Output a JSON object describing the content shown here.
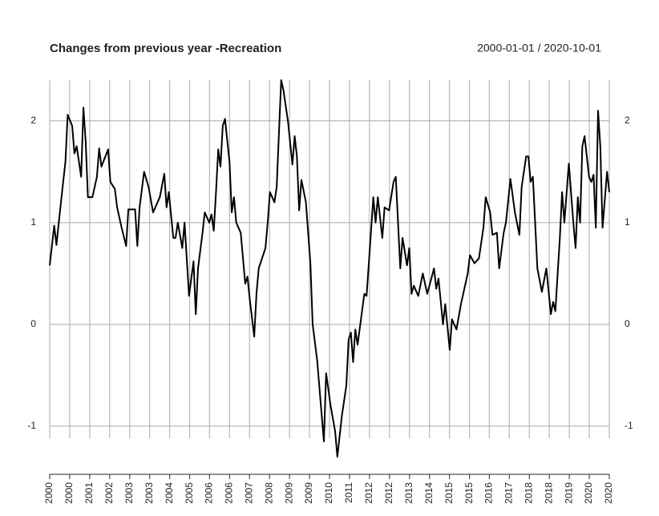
{
  "chart_data": {
    "type": "line",
    "title": "Changes from previous year -Recreation",
    "subtitle": "2000-01-01 / 2020-10-01",
    "x": [
      0,
      2,
      3,
      5,
      7,
      8,
      10,
      11,
      12,
      14,
      15,
      16,
      17,
      19,
      21,
      22,
      23,
      26,
      27,
      29,
      30,
      32,
      34,
      35,
      38,
      39,
      40,
      42,
      44,
      46,
      49,
      51,
      52,
      53,
      55,
      56,
      57,
      59,
      60,
      62,
      64,
      65,
      66,
      68,
      69,
      71,
      72,
      73,
      74,
      75,
      76,
      77,
      78,
      80,
      81,
      82,
      83,
      85,
      87,
      88,
      89,
      91,
      92,
      93,
      96,
      97,
      98,
      100,
      101,
      103,
      104,
      106,
      108,
      109,
      110,
      111,
      112,
      114,
      116,
      117,
      119,
      122,
      123,
      125,
      127,
      128,
      130,
      132,
      133,
      134,
      135,
      136,
      137,
      140,
      141,
      142,
      144,
      145,
      146,
      148,
      149,
      151,
      153,
      154,
      156,
      157,
      159,
      160,
      161,
      162,
      164,
      166,
      168,
      171,
      172,
      173,
      175,
      176,
      178,
      179,
      181,
      183,
      186,
      187,
      189,
      191,
      193,
      194,
      196,
      197,
      199,
      200,
      202,
      203,
      205,
      207,
      209,
      210,
      212,
      213,
      214,
      215,
      217,
      219,
      221,
      223,
      224,
      225,
      227,
      228,
      229,
      231,
      233,
      234,
      235,
      236,
      237,
      238,
      240,
      241,
      242,
      243,
      244,
      245,
      246,
      248,
      249
    ],
    "series": [
      {
        "color": "#000000",
        "values": [
          0.58,
          0.97,
          0.78,
          1.2,
          1.6,
          2.06,
          1.95,
          1.68,
          1.75,
          1.45,
          2.13,
          1.8,
          1.25,
          1.25,
          1.45,
          1.73,
          1.55,
          1.72,
          1.4,
          1.33,
          1.15,
          0.95,
          0.77,
          1.13,
          1.13,
          0.77,
          1.15,
          1.5,
          1.35,
          1.1,
          1.25,
          1.48,
          1.15,
          1.3,
          0.85,
          0.85,
          1.0,
          0.75,
          1.0,
          0.28,
          0.62,
          0.1,
          0.55,
          0.9,
          1.1,
          1.0,
          1.08,
          0.92,
          1.3,
          1.72,
          1.55,
          1.95,
          2.02,
          1.6,
          1.1,
          1.25,
          1.0,
          0.9,
          0.4,
          0.47,
          0.25,
          -0.12,
          0.3,
          0.55,
          0.75,
          1.0,
          1.3,
          1.2,
          1.35,
          2.4,
          2.3,
          2.0,
          1.57,
          1.85,
          1.65,
          1.12,
          1.42,
          1.2,
          0.6,
          0.0,
          -0.35,
          -1.15,
          -0.48,
          -0.8,
          -1.05,
          -1.3,
          -0.9,
          -0.6,
          -0.15,
          -0.08,
          -0.37,
          -0.05,
          -0.2,
          0.3,
          0.28,
          0.6,
          1.25,
          1.0,
          1.25,
          0.85,
          1.15,
          1.12,
          1.4,
          1.45,
          0.55,
          0.85,
          0.58,
          0.75,
          0.3,
          0.38,
          0.28,
          0.5,
          0.3,
          0.55,
          0.35,
          0.45,
          0.0,
          0.2,
          -0.25,
          0.05,
          -0.05,
          0.2,
          0.5,
          0.68,
          0.6,
          0.65,
          0.95,
          1.25,
          1.1,
          0.88,
          0.9,
          0.55,
          0.9,
          1.0,
          1.43,
          1.1,
          0.88,
          1.35,
          1.65,
          1.65,
          1.4,
          1.45,
          0.55,
          0.32,
          0.55,
          0.1,
          0.22,
          0.13,
          0.85,
          1.3,
          1.0,
          1.58,
          1.0,
          0.75,
          1.25,
          1.0,
          1.75,
          1.85,
          1.45,
          1.4,
          1.47,
          0.95,
          2.1,
          1.75,
          0.95,
          1.5,
          1.3
        ]
      }
    ],
    "xlim": [
      0,
      249
    ],
    "xticks": [
      {
        "value": 0,
        "label": "2000"
      },
      {
        "value": 8.9,
        "label": "2000"
      },
      {
        "value": 17.8,
        "label": "2001"
      },
      {
        "value": 26.7,
        "label": "2002"
      },
      {
        "value": 35.6,
        "label": "2003"
      },
      {
        "value": 44.5,
        "label": "2003"
      },
      {
        "value": 53.4,
        "label": "2004"
      },
      {
        "value": 62.3,
        "label": "2005"
      },
      {
        "value": 71.1,
        "label": "2006"
      },
      {
        "value": 80.0,
        "label": "2006"
      },
      {
        "value": 88.9,
        "label": "2007"
      },
      {
        "value": 97.8,
        "label": "2008"
      },
      {
        "value": 106.7,
        "label": "2009"
      },
      {
        "value": 115.6,
        "label": "2009"
      },
      {
        "value": 124.5,
        "label": "2010"
      },
      {
        "value": 133.4,
        "label": "2011"
      },
      {
        "value": 142.3,
        "label": "2012"
      },
      {
        "value": 151.2,
        "label": "2012"
      },
      {
        "value": 160.1,
        "label": "2013"
      },
      {
        "value": 169.0,
        "label": "2014"
      },
      {
        "value": 177.9,
        "label": "2015"
      },
      {
        "value": 186.8,
        "label": "2015"
      },
      {
        "value": 195.6,
        "label": "2016"
      },
      {
        "value": 204.5,
        "label": "2017"
      },
      {
        "value": 213.4,
        "label": "2018"
      },
      {
        "value": 222.3,
        "label": "2018"
      },
      {
        "value": 231.2,
        "label": "2019"
      },
      {
        "value": 240.1,
        "label": "2020"
      },
      {
        "value": 249,
        "label": "2020"
      }
    ],
    "ylim": [
      -1.3,
      2.4
    ],
    "yticks": [
      -1,
      0,
      1,
      2
    ],
    "grid": true
  }
}
